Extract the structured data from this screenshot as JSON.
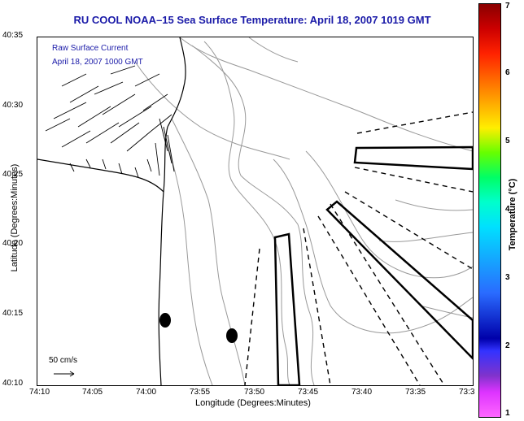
{
  "title": "RU COOL  NOAA–15  Sea Surface Temperature:  April 18, 2007 1019 GMT",
  "annotation": {
    "line1": "Raw Surface Current",
    "line2": "April 18, 2007 1000 GMT"
  },
  "scale_vector_label": "50 cm/s",
  "axes": {
    "xlabel": "Longitude (Degrees:Minutes)",
    "ylabel": "Latitude (Degrees:Minutes)",
    "xticks": [
      "74:10",
      "74:05",
      "74:00",
      "73:55",
      "73:50",
      "73:45",
      "73:40",
      "73:35",
      "73:3"
    ],
    "yticks": [
      "40:35",
      "40:30",
      "40:25",
      "40:20",
      "40:15",
      "40:10"
    ]
  },
  "colorbar": {
    "title": "Temperature (°C)",
    "ticks": [
      "7",
      "6",
      "5",
      "4",
      "3",
      "2",
      "1"
    ],
    "range": [
      1,
      7
    ]
  },
  "colors": {
    "title": "#1a1aa8",
    "contour": "#999999",
    "land": "#000000"
  },
  "map_features": [
    "coastline",
    "bathymetry-contours",
    "surface-current-vectors",
    "dashed-transect-lines",
    "outlined-polygons",
    "filled-ellipses"
  ]
}
